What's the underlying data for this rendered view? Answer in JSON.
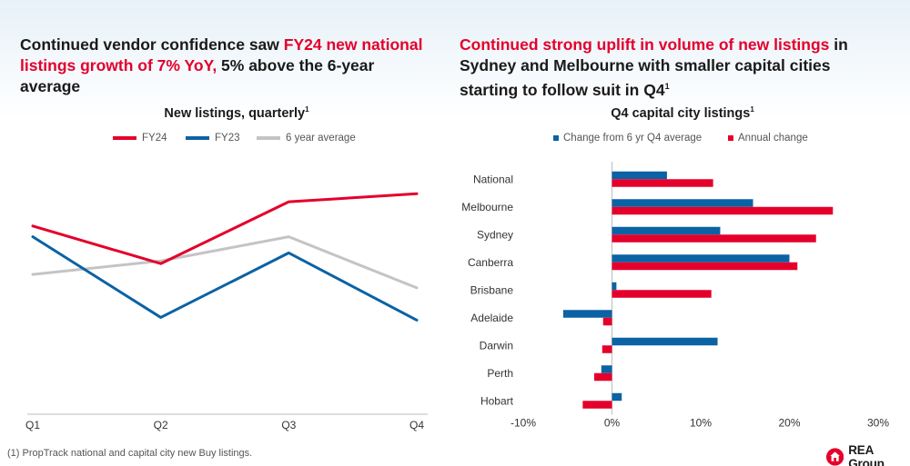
{
  "left": {
    "heading_plain_1": "Continued vendor confidence saw ",
    "heading_highlight": "FY24 new national listings growth of 7% YoY,",
    "heading_plain_2": " 5% above the 6-year average",
    "chart_title": "New listings, quarterly",
    "chart_title_sup": "1"
  },
  "right": {
    "heading_highlight": "Continued strong uplift in volume of new listings",
    "heading_plain": " in Sydney and Melbourne with smaller capital cities starting to follow suit in Q4",
    "heading_sup": "1",
    "chart_title": "Q4 capital city listings",
    "chart_title_sup": "1"
  },
  "footnote": "(1) PropTrack national and capital city new Buy listings.",
  "brand": {
    "name": "REA Group",
    "logo_icon": "house-icon",
    "logo_color": "#e4002b"
  },
  "colors": {
    "red": "#e4002b",
    "blue": "#0b62a4",
    "grey": "#c4c4c4"
  },
  "chart_data": [
    {
      "type": "line",
      "title": "New listings, quarterly",
      "categories": [
        "Q1",
        "Q2",
        "Q3",
        "Q4"
      ],
      "ylim": [
        0,
        100
      ],
      "y_axis_shown": false,
      "legend_placement": "top",
      "series": [
        {
          "name": "FY24",
          "color": "#e4002b",
          "values": [
            70,
            56,
            79,
            82
          ]
        },
        {
          "name": "FY23",
          "color": "#0b62a4",
          "values": [
            66,
            36,
            60,
            35
          ]
        },
        {
          "name": "6 year average",
          "color": "#c4c4c4",
          "values": [
            52,
            57,
            66,
            47
          ]
        }
      ]
    },
    {
      "type": "bar",
      "orientation": "horizontal",
      "title": "Q4 capital city listings",
      "categories": [
        "National",
        "Melbourne",
        "Sydney",
        "Canberra",
        "Brisbane",
        "Adelaide",
        "Darwin",
        "Perth",
        "Hobart"
      ],
      "xlim": [
        -10,
        30
      ],
      "tick_values": [
        -10,
        0,
        10,
        20,
        30
      ],
      "tick_labels": [
        "-10%",
        "0%",
        "10%",
        "20%",
        "30%"
      ],
      "legend_placement": "top",
      "series": [
        {
          "name": "Change from 6 yr Q4 average",
          "color": "#0b62a4",
          "values": [
            6.2,
            15.9,
            12.2,
            20.0,
            0.5,
            -5.5,
            11.9,
            -1.2,
            1.1
          ]
        },
        {
          "name": "Annual change",
          "color": "#e4002b",
          "values": [
            11.4,
            24.9,
            23.0,
            20.9,
            11.2,
            -1.0,
            -1.1,
            -2.0,
            -3.3
          ]
        }
      ]
    }
  ]
}
